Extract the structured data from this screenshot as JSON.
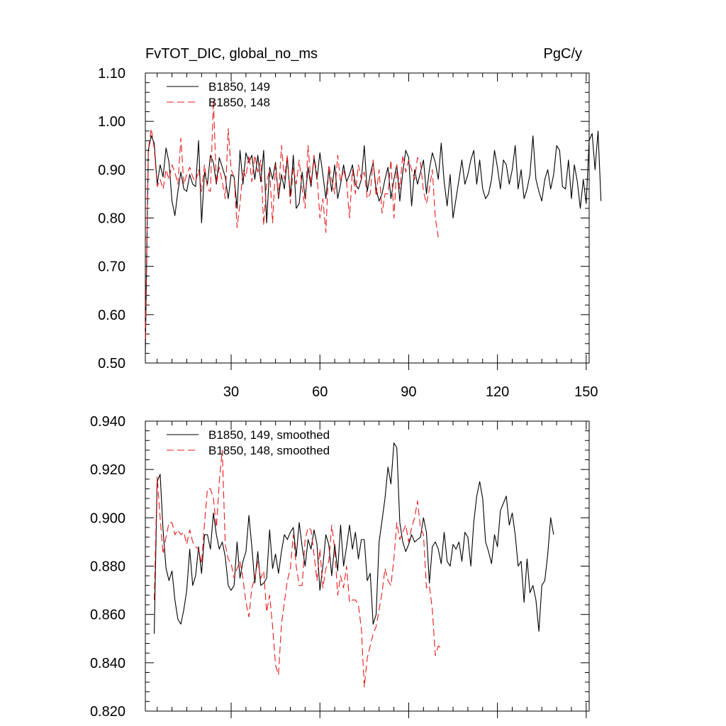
{
  "chart_data": [
    {
      "type": "line",
      "title_left": "FvTOT_DIC, global_no_ms",
      "title_right": "PgC/y",
      "xlabel": "",
      "ylabel": "",
      "xlim": [
        1,
        151
      ],
      "ylim": [
        0.5,
        1.1
      ],
      "x_ticks": [
        30,
        60,
        90,
        120,
        150
      ],
      "x_tick_labels": [
        "30",
        "60",
        "90",
        "120",
        "150"
      ],
      "y_ticks": [
        0.5,
        0.6,
        0.7,
        0.8,
        0.9,
        1.0,
        1.1
      ],
      "y_tick_labels": [
        "0.50",
        "0.60",
        "0.70",
        "0.80",
        "0.90",
        "1.00",
        "1.10"
      ],
      "legend_position": "top-left",
      "series": [
        {
          "name": "B1850, 149",
          "color": "#000000",
          "dash": "solid",
          "x_start": 1,
          "values": [
            0.52,
            0.94,
            0.97,
            0.955,
            0.87,
            0.91,
            0.885,
            0.945,
            0.915,
            0.835,
            0.805,
            0.855,
            0.895,
            0.86,
            0.855,
            0.89,
            0.87,
            0.865,
            0.96,
            0.79,
            0.895,
            0.87,
            0.93,
            0.915,
            0.87,
            0.925,
            0.905,
            0.885,
            0.84,
            0.89,
            0.885,
            0.82,
            0.94,
            0.87,
            0.935,
            0.915,
            0.93,
            0.88,
            0.93,
            0.875,
            0.94,
            0.79,
            0.905,
            0.88,
            0.915,
            0.84,
            0.89,
            0.86,
            0.925,
            0.845,
            0.93,
            0.82,
            0.83,
            0.895,
            0.84,
            0.905,
            0.865,
            0.925,
            0.88,
            0.935,
            0.89,
            0.84,
            0.9,
            0.855,
            0.91,
            0.84,
            0.87,
            0.91,
            0.875,
            0.89,
            0.91,
            0.87,
            0.86,
            0.88,
            0.95,
            0.855,
            0.89,
            0.915,
            0.86,
            0.835,
            0.85,
            0.88,
            0.905,
            0.84,
            0.88,
            0.91,
            0.835,
            0.895,
            0.94,
            0.925,
            0.825,
            0.9,
            0.87,
            0.895,
            0.92,
            0.85,
            0.9,
            0.935,
            0.915,
            0.88,
            0.955,
            0.875,
            0.825,
            0.89,
            0.8,
            0.84,
            0.88,
            0.92,
            0.87,
            0.89,
            0.92,
            0.94,
            0.87,
            0.92,
            0.86,
            0.84,
            0.85,
            0.88,
            0.94,
            0.905,
            0.86,
            0.92,
            0.91,
            0.87,
            0.9,
            0.95,
            0.86,
            0.9,
            0.84,
            0.86,
            0.89,
            0.97,
            0.88,
            0.855,
            0.835,
            0.88,
            0.9,
            0.86,
            0.89,
            0.95,
            0.94,
            0.865,
            0.86,
            0.92,
            0.84,
            0.91,
            0.875,
            0.82,
            0.88,
            0.83,
            0.96,
            0.975,
            0.9,
            0.98,
            0.835
          ]
        },
        {
          "name": "B1850, 148",
          "color": "#e8191b",
          "dash": "dashed",
          "x_start": 1,
          "values": [
            0.55,
            0.94,
            0.985,
            0.945,
            0.865,
            0.88,
            0.86,
            0.9,
            0.88,
            0.91,
            0.895,
            0.87,
            0.965,
            0.87,
            0.89,
            0.905,
            0.885,
            0.875,
            0.9,
            0.855,
            0.91,
            0.86,
            0.855,
            1.045,
            0.87,
            0.905,
            0.875,
            0.84,
            0.985,
            0.9,
            0.885,
            0.78,
            0.83,
            0.9,
            0.885,
            0.93,
            0.875,
            0.93,
            0.895,
            0.92,
            0.785,
            0.875,
            0.9,
            0.79,
            0.91,
            0.845,
            0.95,
            0.88,
            0.93,
            0.83,
            0.905,
            0.87,
            0.92,
            0.86,
            0.82,
            0.95,
            0.87,
            0.93,
            0.89,
            0.8,
            0.84,
            0.77,
            0.91,
            0.88,
            0.85,
            0.93,
            0.875,
            0.9,
            0.875,
            0.8,
            0.9,
            0.85,
            0.91,
            0.88,
            0.895,
            0.84,
            0.85,
            0.92,
            0.845,
            0.9,
            0.81,
            0.85,
            0.85,
            0.92,
            0.8,
            0.91,
            0.86,
            0.93,
            0.895,
            0.92,
            0.9,
            0.88,
            0.925,
            0.915,
            0.855,
            0.83,
            0.86,
            0.9,
            0.8,
            0.76
          ]
        }
      ]
    },
    {
      "type": "line",
      "title_left": "",
      "title_right": "",
      "xlabel": "",
      "ylabel": "",
      "xlim": [
        1,
        151
      ],
      "ylim": [
        0.82,
        0.94
      ],
      "x_ticks": [
        30,
        60,
        90,
        120,
        150
      ],
      "x_tick_labels": [],
      "y_ticks": [
        0.82,
        0.84,
        0.86,
        0.88,
        0.9,
        0.92,
        0.94
      ],
      "y_tick_labels": [
        "0.820",
        "0.840",
        "0.860",
        "0.880",
        "0.900",
        "0.920",
        "0.940"
      ],
      "legend_position": "top-left",
      "series": [
        {
          "name": "B1850, 149, smoothed",
          "color": "#000000",
          "dash": "solid",
          "x_start": 4,
          "values": [
            0.852,
            0.915,
            0.918,
            0.895,
            0.879,
            0.874,
            0.878,
            0.866,
            0.858,
            0.856,
            0.862,
            0.87,
            0.887,
            0.872,
            0.876,
            0.888,
            0.877,
            0.893,
            0.893,
            0.887,
            0.902,
            0.893,
            0.887,
            0.89,
            0.884,
            0.872,
            0.87,
            0.872,
            0.89,
            0.875,
            0.882,
            0.886,
            0.901,
            0.888,
            0.873,
            0.886,
            0.872,
            0.873,
            0.875,
            0.895,
            0.879,
            0.885,
            0.877,
            0.886,
            0.893,
            0.891,
            0.894,
            0.896,
            0.884,
            0.898,
            0.888,
            0.88,
            0.891,
            0.887,
            0.895,
            0.889,
            0.87,
            0.88,
            0.893,
            0.889,
            0.876,
            0.889,
            0.878,
            0.897,
            0.88,
            0.888,
            0.897,
            0.887,
            0.894,
            0.883,
            0.891,
            0.891,
            0.874,
            0.877,
            0.856,
            0.86,
            0.89,
            0.899,
            0.908,
            0.921,
            0.914,
            0.931,
            0.929,
            0.898,
            0.89,
            0.886,
            0.889,
            0.893,
            0.89,
            0.891,
            0.892,
            0.9,
            0.894,
            0.873,
            0.888,
            0.89,
            0.887,
            0.881,
            0.894,
            0.882,
            0.88,
            0.889,
            0.887,
            0.89,
            0.882,
            0.894,
            0.892,
            0.88,
            0.898,
            0.909,
            0.915,
            0.908,
            0.89,
            0.886,
            0.881,
            0.893,
            0.888,
            0.903,
            0.906,
            0.909,
            0.897,
            0.902,
            0.893,
            0.88,
            0.882,
            0.865,
            0.883,
            0.869,
            0.872,
            0.866,
            0.853,
            0.872,
            0.874,
            0.885,
            0.9,
            0.893
          ]
        },
        {
          "name": "B1850, 148, smoothed",
          "color": "#e8191b",
          "dash": "dashed",
          "x_start": 4,
          "values": [
            0.866,
            0.917,
            0.9,
            0.885,
            0.892,
            0.898,
            0.898,
            0.893,
            0.895,
            0.893,
            0.894,
            0.889,
            0.895,
            0.89,
            0.888,
            0.887,
            0.881,
            0.898,
            0.912,
            0.912,
            0.908,
            0.896,
            0.915,
            0.928,
            0.889,
            0.883,
            0.881,
            0.875,
            0.879,
            0.882,
            0.875,
            0.865,
            0.859,
            0.871,
            0.875,
            0.882,
            0.875,
            0.878,
            0.861,
            0.868,
            0.855,
            0.839,
            0.835,
            0.856,
            0.865,
            0.874,
            0.879,
            0.893,
            0.88,
            0.872,
            0.872,
            0.891,
            0.896,
            0.895,
            0.885,
            0.874,
            0.887,
            0.871,
            0.879,
            0.882,
            0.897,
            0.887,
            0.868,
            0.876,
            0.871,
            0.88,
            0.865,
            0.866,
            0.866,
            0.864,
            0.854,
            0.83,
            0.842,
            0.847,
            0.852,
            0.855,
            0.862,
            0.869,
            0.879,
            0.874,
            0.872,
            0.883,
            0.898,
            0.891,
            0.894,
            0.897,
            0.89,
            0.896,
            0.9,
            0.907,
            0.896,
            0.893,
            0.871,
            0.872,
            0.862,
            0.843,
            0.847,
            0.846
          ]
        }
      ]
    }
  ]
}
